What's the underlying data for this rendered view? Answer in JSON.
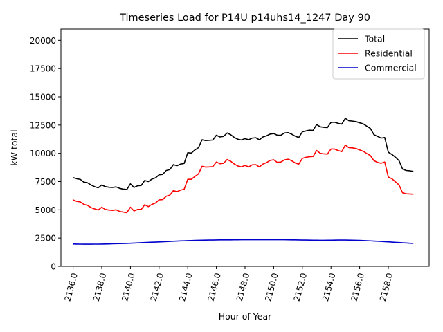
{
  "chart_data": {
    "type": "line",
    "title": "Timeseries Load for P14U p14uhs14_1247  Day 90",
    "xlabel": "Hour of Year",
    "ylabel": "kW total",
    "xlim": [
      2135.15,
      2160.85
    ],
    "ylim": [
      0,
      21000
    ],
    "x_ticks": [
      2136,
      2138,
      2140,
      2142,
      2144,
      2146,
      2148,
      2150,
      2152,
      2154,
      2156,
      2158
    ],
    "x_tick_labels": [
      "2136.0",
      "2138.0",
      "2140.0",
      "2142.0",
      "2144.0",
      "2146.0",
      "2148.0",
      "2150.0",
      "2152.0",
      "2154.0",
      "2156.0",
      "2158.0"
    ],
    "y_ticks": [
      0,
      2500,
      5000,
      7500,
      10000,
      12500,
      15000,
      17500,
      20000
    ],
    "y_tick_labels": [
      "0",
      "2500",
      "5000",
      "7500",
      "10000",
      "12500",
      "15000",
      "17500",
      "20000"
    ],
    "legend_position": "top-right",
    "x_start": 2136.0,
    "x_step": 0.25,
    "series": [
      {
        "name": "Total",
        "color": "#000000",
        "values": [
          7850,
          7750,
          7700,
          7450,
          7400,
          7200,
          7050,
          6950,
          7200,
          7050,
          7000,
          6980,
          7030,
          6900,
          6830,
          6800,
          7300,
          6980,
          7130,
          7150,
          7600,
          7500,
          7720,
          7830,
          8100,
          8130,
          8480,
          8560,
          9000,
          8900,
          9050,
          9100,
          10050,
          10020,
          10300,
          10500,
          11200,
          11130,
          11150,
          11180,
          11600,
          11450,
          11500,
          11800,
          11650,
          11400,
          11250,
          11180,
          11300,
          11200,
          11350,
          11380,
          11200,
          11450,
          11550,
          11700,
          11750,
          11600,
          11600,
          11800,
          11830,
          11700,
          11520,
          11400,
          11900,
          11980,
          12050,
          12030,
          12550,
          12350,
          12300,
          12280,
          12730,
          12750,
          12650,
          12580,
          13100,
          12880,
          12850,
          12800,
          12700,
          12600,
          12400,
          12200,
          11650,
          11500,
          11350,
          11400,
          10100,
          9900,
          9650,
          9350,
          8600,
          8480,
          8450,
          8400
        ]
      },
      {
        "name": "Residential",
        "color": "#ff0000",
        "values": [
          5880,
          5750,
          5700,
          5480,
          5400,
          5200,
          5080,
          4980,
          5230,
          5030,
          4980,
          4950,
          5000,
          4850,
          4800,
          4750,
          5230,
          4900,
          5030,
          5030,
          5450,
          5280,
          5480,
          5600,
          5880,
          5900,
          6200,
          6300,
          6700,
          6600,
          6750,
          6820,
          7700,
          7700,
          7950,
          8180,
          8850,
          8780,
          8800,
          8820,
          9230,
          9080,
          9120,
          9450,
          9300,
          9050,
          8880,
          8800,
          8930,
          8800,
          8980,
          9000,
          8800,
          9050,
          9180,
          9370,
          9430,
          9200,
          9230,
          9420,
          9480,
          9350,
          9150,
          9050,
          9550,
          9650,
          9700,
          9720,
          10250,
          10000,
          9950,
          9930,
          10380,
          10380,
          10250,
          10150,
          10730,
          10500,
          10480,
          10420,
          10300,
          10180,
          9980,
          9800,
          9350,
          9200,
          9120,
          9230,
          7900,
          7750,
          7480,
          7200,
          6500,
          6420,
          6400,
          6380
        ]
      },
      {
        "name": "Commercial",
        "color": "#0000cc",
        "values": [
          1970,
          1965,
          1960,
          1955,
          1955,
          1955,
          1960,
          1960,
          1965,
          1970,
          1980,
          1990,
          2000,
          2005,
          2015,
          2025,
          2040,
          2055,
          2070,
          2085,
          2100,
          2115,
          2130,
          2140,
          2155,
          2170,
          2185,
          2200,
          2215,
          2230,
          2245,
          2255,
          2270,
          2280,
          2290,
          2300,
          2310,
          2315,
          2320,
          2325,
          2330,
          2335,
          2335,
          2340,
          2340,
          2345,
          2345,
          2350,
          2350,
          2350,
          2350,
          2355,
          2355,
          2355,
          2355,
          2355,
          2355,
          2355,
          2350,
          2350,
          2345,
          2340,
          2335,
          2330,
          2325,
          2320,
          2315,
          2310,
          2305,
          2300,
          2300,
          2305,
          2310,
          2315,
          2320,
          2320,
          2320,
          2315,
          2310,
          2300,
          2290,
          2280,
          2265,
          2250,
          2230,
          2215,
          2200,
          2180,
          2160,
          2140,
          2120,
          2100,
          2080,
          2060,
          2040,
          2020
        ]
      }
    ]
  }
}
